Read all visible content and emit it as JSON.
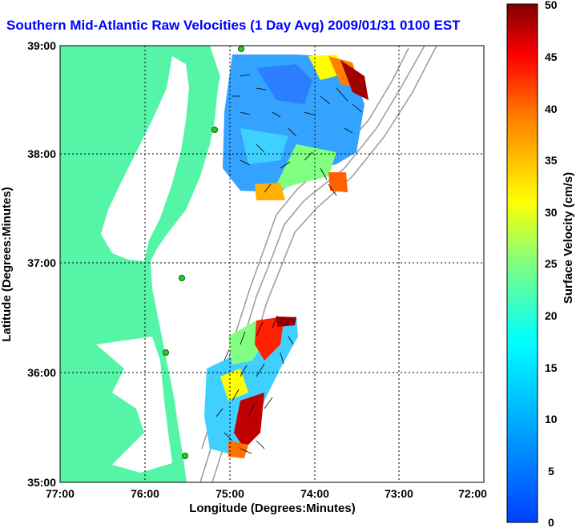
{
  "title": "Southern Mid-Atlantic Raw Velocities (1 Day Avg) 2009/01/31 0100 EST",
  "map": {
    "xlabel": "Longitude (Degrees:Minutes)",
    "ylabel": "Latitude (Degrees:Minutes)",
    "x_ticks": [
      "77:00",
      "76:00",
      "75:00",
      "74:00",
      "73:00",
      "72:00"
    ],
    "y_ticks": [
      "39:00",
      "38:00",
      "37:00",
      "36:00",
      "35:00"
    ],
    "land_color": "#55f5a8",
    "water_color": "#ffffff",
    "station_color": "#2ec82e",
    "stations_count_visible": 5
  },
  "colorbar": {
    "label": "Surface Velocity (cm/s)",
    "ticks": [
      "50",
      "45",
      "40",
      "35",
      "30",
      "25",
      "20",
      "15",
      "10",
      "5",
      "0"
    ],
    "colormap": "jet",
    "range": [
      0,
      50
    ]
  }
}
